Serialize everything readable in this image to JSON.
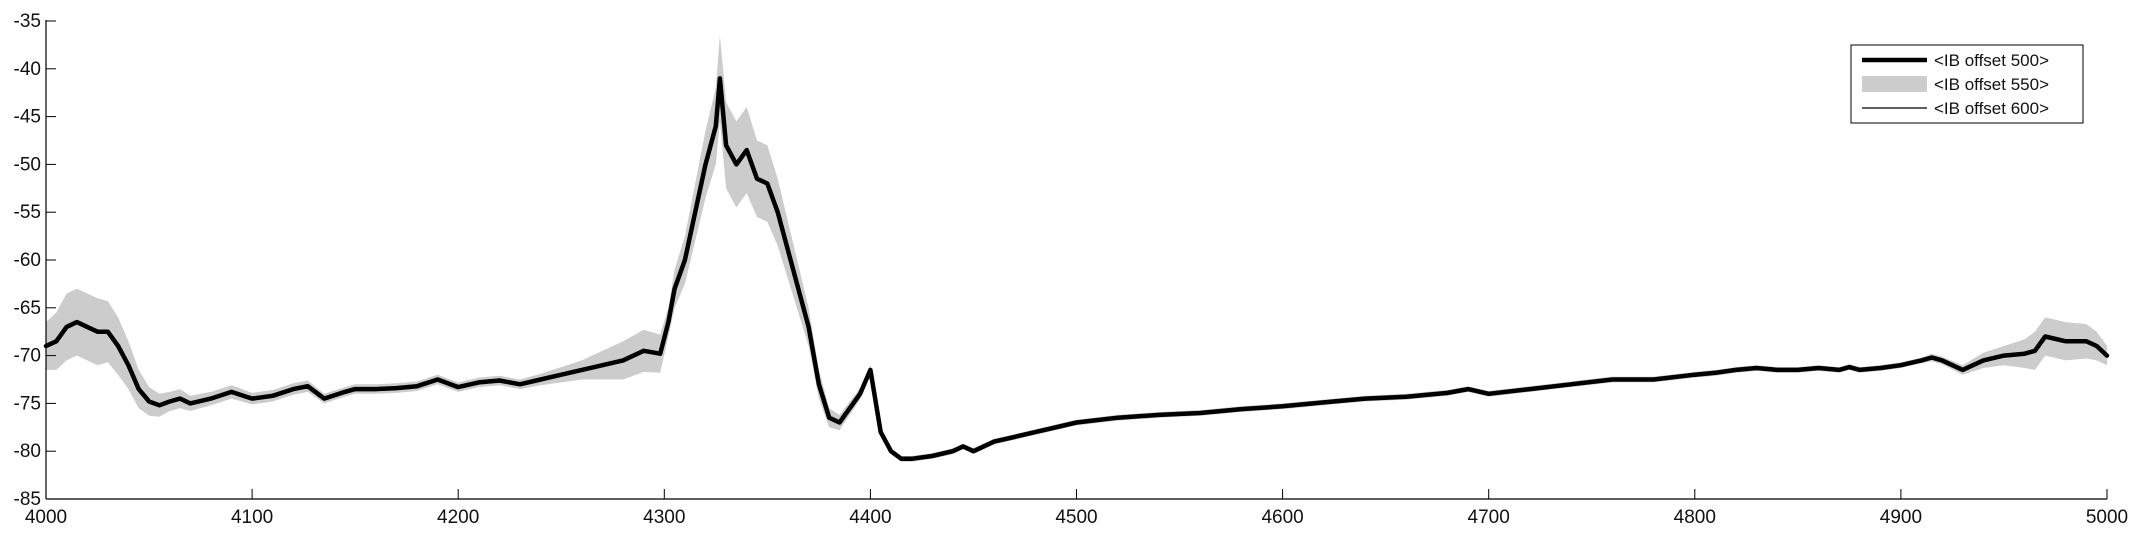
{
  "chart_data": {
    "type": "line",
    "title": "",
    "xlabel": "",
    "ylabel": "",
    "xlim": [
      4000,
      5000
    ],
    "ylim": [
      -85,
      -35
    ],
    "x_ticks": [
      4000,
      4100,
      4200,
      4300,
      4400,
      4500,
      4600,
      4700,
      4800,
      4900,
      5000
    ],
    "y_ticks": [
      -35,
      -40,
      -45,
      -50,
      -55,
      -60,
      -65,
      -70,
      -75,
      -80,
      -85
    ],
    "grid": false,
    "legend_position": "top-right",
    "x": [
      4000,
      4005,
      4010,
      4015,
      4020,
      4025,
      4030,
      4035,
      4040,
      4045,
      4050,
      4055,
      4060,
      4065,
      4070,
      4080,
      4090,
      4100,
      4110,
      4120,
      4127,
      4135,
      4145,
      4150,
      4160,
      4170,
      4180,
      4190,
      4200,
      4210,
      4220,
      4230,
      4240,
      4250,
      4260,
      4270,
      4280,
      4290,
      4298,
      4302,
      4305,
      4310,
      4315,
      4320,
      4325,
      4327,
      4330,
      4335,
      4340,
      4345,
      4350,
      4355,
      4360,
      4365,
      4370,
      4375,
      4380,
      4385,
      4390,
      4395,
      4400,
      4405,
      4410,
      4415,
      4420,
      4430,
      4440,
      4445,
      4450,
      4460,
      4470,
      4480,
      4490,
      4500,
      4520,
      4540,
      4560,
      4580,
      4600,
      4620,
      4640,
      4660,
      4680,
      4690,
      4700,
      4720,
      4740,
      4760,
      4780,
      4800,
      4810,
      4820,
      4830,
      4840,
      4850,
      4860,
      4870,
      4875,
      4880,
      4890,
      4900,
      4910,
      4915,
      4920,
      4930,
      4940,
      4950,
      4960,
      4965,
      4970,
      4980,
      4990,
      4995,
      5000
    ],
    "series": [
      {
        "name": "<IB offset 500>",
        "style": "thick",
        "color": "#000000",
        "values": [
          -69,
          -68.5,
          -67,
          -66.5,
          -67,
          -67.5,
          -67.5,
          -69,
          -71,
          -73.5,
          -74.8,
          -75.2,
          -74.8,
          -74.5,
          -75,
          -74.5,
          -73.8,
          -74.5,
          -74.2,
          -73.5,
          -73.2,
          -74.5,
          -73.8,
          -73.5,
          -73.5,
          -73.4,
          -73.2,
          -72.5,
          -73.3,
          -72.8,
          -72.6,
          -73,
          -72.5,
          -72,
          -71.5,
          -71,
          -70.5,
          -69.5,
          -69.8,
          -66.5,
          -63,
          -60,
          -55,
          -50,
          -46,
          -41,
          -48,
          -50,
          -48.5,
          -51.5,
          -52,
          -55,
          -59,
          -63,
          -67,
          -73,
          -76.5,
          -77,
          -75.5,
          -74,
          -71.5,
          -78,
          -80,
          -80.8,
          -80.8,
          -80.5,
          -80,
          -79.5,
          -80,
          -79,
          -78.5,
          -78,
          -77.5,
          -77,
          -76.5,
          -76.2,
          -76,
          -75.6,
          -75.3,
          -74.9,
          -74.5,
          -74.3,
          -73.9,
          -73.5,
          -74,
          -73.5,
          -73,
          -72.5,
          -72.5,
          -72,
          -71.8,
          -71.5,
          -71.3,
          -71.5,
          -71.5,
          -71.3,
          -71.5,
          -71.2,
          -71.5,
          -71.3,
          -71,
          -70.5,
          -70.2,
          -70.5,
          -71.5,
          -70.5,
          -70,
          -69.8,
          -69.5,
          -68,
          -68.5,
          -68.5,
          -69,
          -70
        ]
      },
      {
        "name": "<IB offset 550>",
        "style": "band",
        "color": "#cccccc",
        "values": [
          -69,
          -68.5,
          -67,
          -66.5,
          -67,
          -67.5,
          -67.5,
          -69,
          -71,
          -73.5,
          -74.8,
          -75.2,
          -74.8,
          -74.5,
          -75,
          -74.5,
          -73.8,
          -74.5,
          -74.2,
          -73.5,
          -73.2,
          -74.5,
          -73.8,
          -73.5,
          -73.5,
          -73.4,
          -73.2,
          -72.5,
          -73.3,
          -72.8,
          -72.6,
          -73,
          -72.5,
          -72,
          -71.5,
          -71,
          -70.5,
          -69.5,
          -69.8,
          -66.5,
          -63,
          -60,
          -55,
          -50,
          -46,
          -41,
          -48,
          -50,
          -48.5,
          -51.5,
          -52,
          -55,
          -59,
          -63,
          -67,
          -73,
          -76.5,
          -77,
          -75.5,
          -74,
          -71.5,
          -78,
          -80,
          -80.8,
          -80.8,
          -80.5,
          -80,
          -79.5,
          -80,
          -79,
          -78.5,
          -78,
          -77.5,
          -77,
          -76.5,
          -76.2,
          -76,
          -75.6,
          -75.3,
          -74.9,
          -74.5,
          -74.3,
          -73.9,
          -73.5,
          -74,
          -73.5,
          -73,
          -72.5,
          -72.5,
          -72,
          -71.8,
          -71.5,
          -71.3,
          -71.5,
          -71.5,
          -71.3,
          -71.5,
          -71.2,
          -71.5,
          -71.3,
          -71,
          -70.5,
          -70.2,
          -70.5,
          -71.5,
          -70.5,
          -70,
          -69.8,
          -69.5,
          -68,
          -68.5,
          -68.5,
          -69,
          -70
        ],
        "spread": [
          2.5,
          3,
          3.5,
          3.5,
          3.5,
          3.5,
          3.2,
          3,
          2.5,
          2,
          1.5,
          1.2,
          1,
          1,
          0.8,
          0.7,
          0.7,
          0.6,
          0.6,
          0.6,
          0.6,
          0.5,
          0.5,
          0.5,
          0.5,
          0.5,
          0.5,
          0.5,
          0.5,
          0.5,
          0.5,
          0.5,
          0.6,
          0.8,
          1,
          1.5,
          2,
          2.2,
          2,
          1.5,
          2,
          2.5,
          3,
          3.5,
          4,
          4.5,
          4.5,
          4.5,
          4.5,
          4,
          4,
          3.5,
          3,
          2.5,
          2,
          1.5,
          1,
          0.8,
          0.7,
          0.6,
          0.5,
          0.4,
          0.3,
          0.3,
          0.3,
          0.3,
          0.3,
          0.3,
          0.3,
          0.3,
          0.3,
          0.3,
          0.3,
          0.3,
          0.3,
          0.3,
          0.3,
          0.3,
          0.3,
          0.3,
          0.3,
          0.3,
          0.3,
          0.3,
          0.3,
          0.3,
          0.3,
          0.3,
          0.3,
          0.3,
          0.3,
          0.3,
          0.3,
          0.3,
          0.3,
          0.3,
          0.3,
          0.3,
          0.3,
          0.3,
          0.3,
          0.3,
          0.4,
          0.4,
          0.5,
          0.8,
          1,
          1.5,
          2,
          2,
          2,
          1.8,
          1.5,
          1
        ]
      },
      {
        "name": "<IB offset 600>",
        "style": "thin",
        "color": "#000000",
        "values": [
          -69,
          -68.5,
          -67,
          -66.5,
          -67,
          -67.5,
          -67.5,
          -69,
          -71,
          -73.5,
          -74.8,
          -75.2,
          -74.8,
          -74.5,
          -75,
          -74.5,
          -73.8,
          -74.5,
          -74.2,
          -73.5,
          -73.2,
          -74.5,
          -73.8,
          -73.5,
          -73.5,
          -73.4,
          -73.2,
          -72.5,
          -73.3,
          -72.8,
          -72.6,
          -73,
          -72.5,
          -72,
          -71.5,
          -71,
          -70.5,
          -69.5,
          -69.8,
          -66.5,
          -63,
          -60,
          -55,
          -50,
          -46,
          -41,
          -48,
          -50,
          -48.5,
          -51.5,
          -52,
          -55,
          -59,
          -63,
          -67,
          -73,
          -76.5,
          -77,
          -75.5,
          -74,
          -71.5,
          -78,
          -80,
          -80.8,
          -80.8,
          -80.5,
          -80,
          -79.5,
          -80,
          -79,
          -78.5,
          -78,
          -77.5,
          -77,
          -76.5,
          -76.2,
          -76,
          -75.6,
          -75.3,
          -74.9,
          -74.5,
          -74.3,
          -73.9,
          -73.5,
          -74,
          -73.5,
          -73,
          -72.5,
          -72.5,
          -72,
          -71.8,
          -71.5,
          -71.3,
          -71.5,
          -71.5,
          -71.3,
          -71.5,
          -71.2,
          -71.5,
          -71.3,
          -71,
          -70.5,
          -70.2,
          -70.5,
          -71.5,
          -70.5,
          -70,
          -69.8,
          -69.5,
          -68,
          -68.5,
          -68.5,
          -69,
          -70
        ]
      }
    ]
  }
}
